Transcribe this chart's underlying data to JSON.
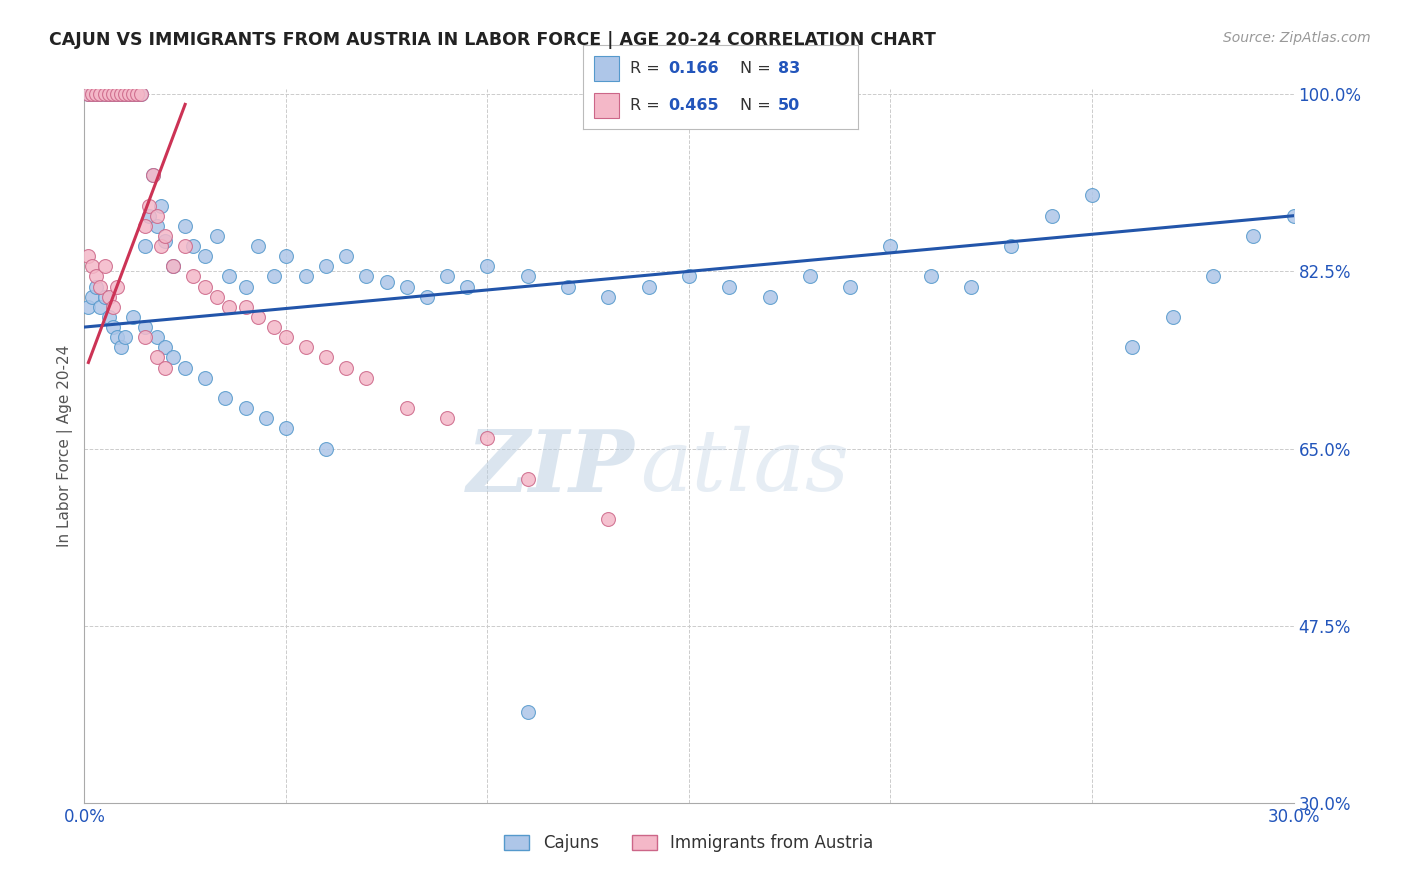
{
  "title": "CAJUN VS IMMIGRANTS FROM AUSTRIA IN LABOR FORCE | AGE 20-24 CORRELATION CHART",
  "source": "Source: ZipAtlas.com",
  "ylabel": "In Labor Force | Age 20-24",
  "xmin": 0.0,
  "xmax": 0.3,
  "ymin": 0.3,
  "ymax": 1.005,
  "yticks": [
    0.3,
    0.475,
    0.65,
    0.825,
    1.0
  ],
  "ytick_labels": [
    "30.0%",
    "47.5%",
    "65.0%",
    "82.5%",
    "100.0%"
  ],
  "xticks": [
    0.0,
    0.05,
    0.1,
    0.15,
    0.2,
    0.25,
    0.3
  ],
  "xtick_labels": [
    "0.0%",
    "",
    "",
    "",
    "",
    "",
    "30.0%"
  ],
  "cajun_R": 0.166,
  "cajun_N": 83,
  "austria_R": 0.465,
  "austria_N": 50,
  "cajun_color": "#aec6e8",
  "cajun_edge_color": "#5599cc",
  "austria_color": "#f4b8c8",
  "austria_edge_color": "#cc6688",
  "trendline_cajun_color": "#2255aa",
  "trendline_austria_color": "#cc3355",
  "watermark_zip": "ZIP",
  "watermark_atlas": "atlas",
  "background_color": "#ffffff",
  "cajun_x": [
    0.001,
    0.002,
    0.003,
    0.004,
    0.005,
    0.006,
    0.007,
    0.008,
    0.009,
    0.01,
    0.011,
    0.012,
    0.013,
    0.014,
    0.015,
    0.016,
    0.017,
    0.018,
    0.019,
    0.02,
    0.022,
    0.025,
    0.027,
    0.03,
    0.033,
    0.036,
    0.04,
    0.043,
    0.047,
    0.05,
    0.055,
    0.06,
    0.065,
    0.07,
    0.075,
    0.08,
    0.085,
    0.09,
    0.095,
    0.1,
    0.11,
    0.12,
    0.13,
    0.14,
    0.15,
    0.16,
    0.17,
    0.18,
    0.19,
    0.2,
    0.21,
    0.22,
    0.23,
    0.24,
    0.25,
    0.26,
    0.27,
    0.28,
    0.29,
    0.3,
    0.001,
    0.002,
    0.003,
    0.004,
    0.005,
    0.006,
    0.007,
    0.008,
    0.009,
    0.01,
    0.012,
    0.015,
    0.018,
    0.02,
    0.022,
    0.025,
    0.03,
    0.035,
    0.04,
    0.045,
    0.05,
    0.06,
    0.11
  ],
  "cajun_y": [
    1.0,
    1.0,
    1.0,
    1.0,
    1.0,
    1.0,
    1.0,
    1.0,
    1.0,
    1.0,
    1.0,
    1.0,
    1.0,
    1.0,
    0.85,
    0.88,
    0.92,
    0.87,
    0.89,
    0.855,
    0.83,
    0.87,
    0.85,
    0.84,
    0.86,
    0.82,
    0.81,
    0.85,
    0.82,
    0.84,
    0.82,
    0.83,
    0.84,
    0.82,
    0.815,
    0.81,
    0.8,
    0.82,
    0.81,
    0.83,
    0.82,
    0.81,
    0.8,
    0.81,
    0.82,
    0.81,
    0.8,
    0.82,
    0.81,
    0.85,
    0.82,
    0.81,
    0.85,
    0.88,
    0.9,
    0.75,
    0.78,
    0.82,
    0.86,
    0.88,
    0.79,
    0.8,
    0.81,
    0.79,
    0.8,
    0.78,
    0.77,
    0.76,
    0.75,
    0.76,
    0.78,
    0.77,
    0.76,
    0.75,
    0.74,
    0.73,
    0.72,
    0.7,
    0.69,
    0.68,
    0.67,
    0.65,
    0.39
  ],
  "austria_x": [
    0.001,
    0.002,
    0.003,
    0.004,
    0.005,
    0.006,
    0.007,
    0.008,
    0.009,
    0.01,
    0.011,
    0.012,
    0.013,
    0.014,
    0.015,
    0.016,
    0.017,
    0.018,
    0.019,
    0.02,
    0.001,
    0.002,
    0.003,
    0.004,
    0.005,
    0.006,
    0.007,
    0.008,
    0.022,
    0.025,
    0.027,
    0.03,
    0.033,
    0.036,
    0.04,
    0.043,
    0.047,
    0.05,
    0.055,
    0.06,
    0.065,
    0.07,
    0.08,
    0.09,
    0.1,
    0.11,
    0.13,
    0.015,
    0.018,
    0.02
  ],
  "austria_y": [
    1.0,
    1.0,
    1.0,
    1.0,
    1.0,
    1.0,
    1.0,
    1.0,
    1.0,
    1.0,
    1.0,
    1.0,
    1.0,
    1.0,
    0.87,
    0.89,
    0.92,
    0.88,
    0.85,
    0.86,
    0.84,
    0.83,
    0.82,
    0.81,
    0.83,
    0.8,
    0.79,
    0.81,
    0.83,
    0.85,
    0.82,
    0.81,
    0.8,
    0.79,
    0.79,
    0.78,
    0.77,
    0.76,
    0.75,
    0.74,
    0.73,
    0.72,
    0.69,
    0.68,
    0.66,
    0.62,
    0.58,
    0.76,
    0.74,
    0.73
  ],
  "trendline_cajun_x0": 0.0,
  "trendline_cajun_x1": 0.3,
  "trendline_cajun_y0": 0.77,
  "trendline_cajun_y1": 0.88,
  "trendline_austria_x0": 0.001,
  "trendline_austria_x1": 0.025,
  "trendline_austria_y0": 0.735,
  "trendline_austria_y1": 0.99
}
